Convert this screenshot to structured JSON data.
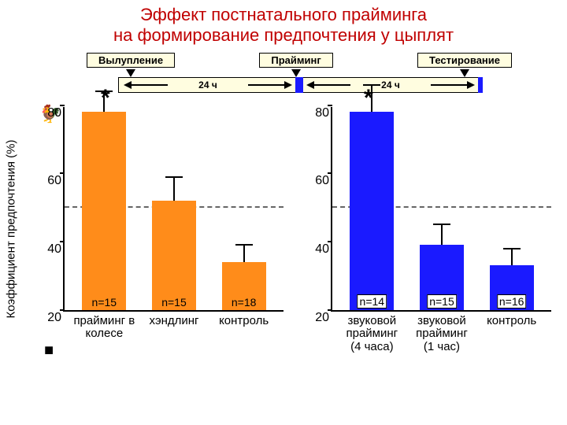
{
  "title_line1": "Эффект постнатального прайминга",
  "title_line2": "на формирование предпочтения у цыплят",
  "title_color": "#c00000",
  "stages": {
    "hatch": "Вылупление",
    "priming": "Прайминг",
    "testing": "Тестирование"
  },
  "time_label": "24 ч",
  "ylabel": "Коэффициент предпочтения (%)",
  "ylim": [
    20,
    80
  ],
  "yticks": [
    20,
    40,
    60,
    80
  ],
  "ref_line": 50,
  "left": {
    "bar_color": "#ff8c1a",
    "star_x": 46,
    "categories": [
      "прайминг в колесе",
      "хэндлинг",
      "контроль"
    ],
    "bars": [
      {
        "value": 78,
        "err": 6,
        "n": "n=15"
      },
      {
        "value": 52,
        "err": 7,
        "n": "n=15"
      },
      {
        "value": 34,
        "err": 5,
        "n": "n=18"
      }
    ]
  },
  "right": {
    "bar_color": "#1a1aff",
    "star_x": 40,
    "categories": [
      "звуковой прайминг (4 часа)",
      "звуковой прайминг (1 час)",
      "контроль"
    ],
    "n_boxed": true,
    "bars": [
      {
        "value": 78,
        "err": 8,
        "n": "n=14"
      },
      {
        "value": 39,
        "err": 6,
        "n": "n=15"
      },
      {
        "value": 33,
        "err": 5,
        "n": "n=16"
      }
    ]
  }
}
